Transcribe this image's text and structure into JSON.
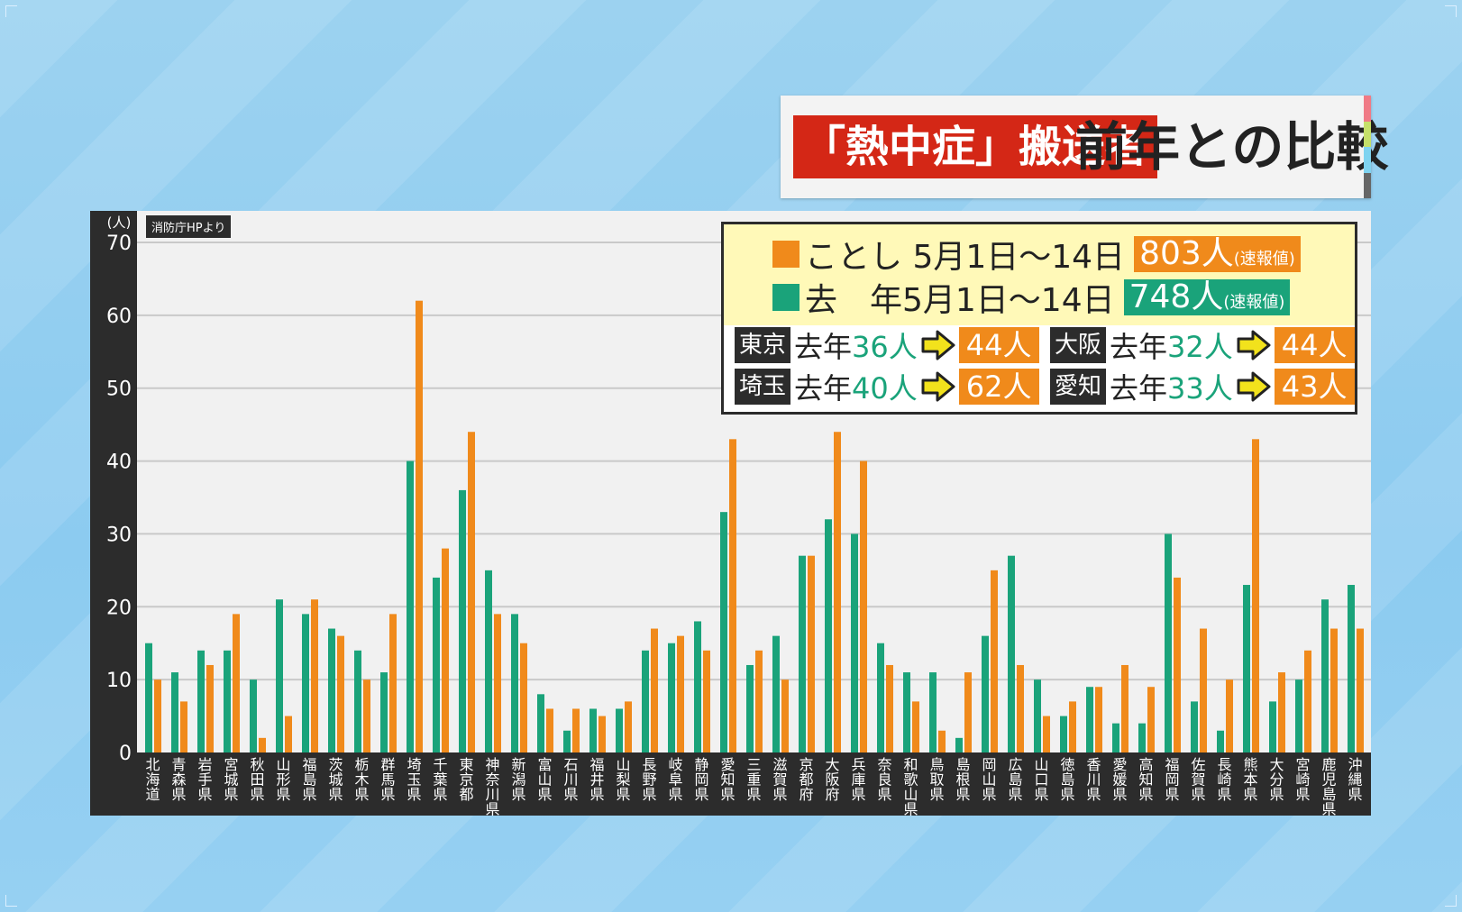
{
  "title": {
    "highlight": "「熱中症」搬送者",
    "main": "前年との比較"
  },
  "source": "消防庁HPより",
  "legend": {
    "this_year": {
      "label": "ことし 5月1日～14日",
      "count": "803人",
      "note": "(速報値)",
      "color": "#f08a1b"
    },
    "last_year": {
      "label": "去　年5月1日～14日",
      "count": "748人",
      "note": "(速報値)",
      "color": "#1aa37a"
    }
  },
  "comparisons": [
    {
      "pref": "東京",
      "prefix": "去年",
      "last": "36人",
      "this": "44人"
    },
    {
      "pref": "大阪",
      "prefix": "去年",
      "last": "32人",
      "this": "44人"
    },
    {
      "pref": "埼玉",
      "prefix": "去年",
      "last": "40人",
      "this": "62人"
    },
    {
      "pref": "愛知",
      "prefix": "去年",
      "last": "33人",
      "this": "43人"
    }
  ],
  "chart_data": {
    "type": "bar",
    "ylabel": "(人)",
    "ylim": [
      0,
      70
    ],
    "yticks": [
      0,
      10,
      20,
      30,
      40,
      50,
      60,
      70
    ],
    "grid": true,
    "categories": [
      "北海道",
      "青森県",
      "岩手県",
      "宮城県",
      "秋田県",
      "山形県",
      "福島県",
      "茨城県",
      "栃木県",
      "群馬県",
      "埼玉県",
      "千葉県",
      "東京都",
      "神奈川県",
      "新潟県",
      "富山県",
      "石川県",
      "福井県",
      "山梨県",
      "長野県",
      "岐阜県",
      "静岡県",
      "愛知県",
      "三重県",
      "滋賀県",
      "京都府",
      "大阪府",
      "兵庫県",
      "奈良県",
      "和歌山県",
      "鳥取県",
      "島根県",
      "岡山県",
      "広島県",
      "山口県",
      "徳島県",
      "香川県",
      "愛媛県",
      "高知県",
      "福岡県",
      "佐賀県",
      "長崎県",
      "熊本県",
      "大分県",
      "宮崎県",
      "鹿児島県",
      "沖縄県"
    ],
    "series": [
      {
        "name": "去年",
        "color": "#1aa37a",
        "values": [
          15,
          11,
          14,
          14,
          10,
          21,
          19,
          17,
          14,
          11,
          40,
          24,
          36,
          25,
          19,
          8,
          3,
          6,
          6,
          14,
          15,
          18,
          33,
          12,
          16,
          27,
          32,
          30,
          15,
          11,
          11,
          2,
          16,
          27,
          10,
          5,
          9,
          4,
          4,
          30,
          7,
          3,
          23,
          7,
          10,
          21,
          23
        ]
      },
      {
        "name": "ことし",
        "color": "#f08a1b",
        "values": [
          10,
          7,
          12,
          19,
          2,
          5,
          21,
          16,
          10,
          19,
          62,
          28,
          44,
          19,
          15,
          6,
          6,
          5,
          7,
          17,
          16,
          14,
          43,
          14,
          10,
          27,
          44,
          40,
          12,
          7,
          3,
          11,
          25,
          12,
          5,
          7,
          9,
          12,
          9,
          24,
          17,
          10,
          43,
          11,
          14,
          17,
          17
        ]
      }
    ]
  }
}
